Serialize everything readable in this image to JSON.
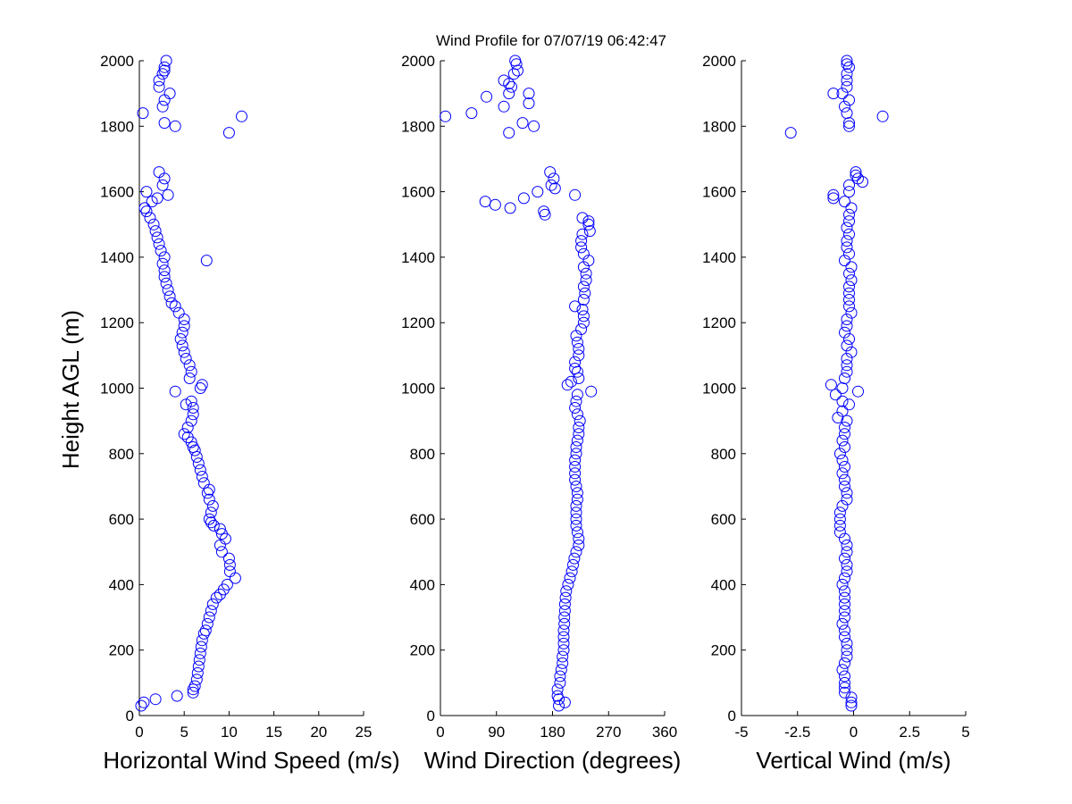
{
  "figure": {
    "title": "Wind Profile for  07/07/19 06:42:47",
    "ylabel": "Height AGL (m)"
  },
  "chart_data": [
    {
      "type": "scatter",
      "xlabel": "Horizontal Wind Speed (m/s)",
      "ylabel": "Height AGL (m)",
      "xlim": [
        0,
        25
      ],
      "ylim": [
        0,
        2000
      ],
      "xticks": [
        "0",
        "5",
        "10",
        "15",
        "20",
        "25"
      ],
      "yticks": [
        "0",
        "200",
        "400",
        "600",
        "800",
        "1000",
        "1200",
        "1400",
        "1600",
        "1800",
        "2000"
      ],
      "marker_color": "#0000ff",
      "points": [
        [
          0.2,
          30
        ],
        [
          0.5,
          40
        ],
        [
          1.8,
          50
        ],
        [
          4.2,
          60
        ],
        [
          6.0,
          70
        ],
        [
          6.0,
          80
        ],
        [
          6.2,
          90
        ],
        [
          6.4,
          110
        ],
        [
          6.5,
          130
        ],
        [
          6.6,
          150
        ],
        [
          6.7,
          170
        ],
        [
          6.8,
          190
        ],
        [
          6.9,
          210
        ],
        [
          7.0,
          230
        ],
        [
          7.2,
          250
        ],
        [
          7.4,
          260
        ],
        [
          7.6,
          280
        ],
        [
          7.8,
          300
        ],
        [
          8.0,
          320
        ],
        [
          8.2,
          340
        ],
        [
          8.6,
          360
        ],
        [
          9.0,
          370
        ],
        [
          9.4,
          385
        ],
        [
          9.8,
          400
        ],
        [
          10.7,
          420
        ],
        [
          10.1,
          440
        ],
        [
          10.1,
          460
        ],
        [
          10.0,
          480
        ],
        [
          9.2,
          500
        ],
        [
          9.0,
          520
        ],
        [
          9.6,
          540
        ],
        [
          9.2,
          555
        ],
        [
          9.0,
          570
        ],
        [
          8.3,
          580
        ],
        [
          8.0,
          590
        ],
        [
          7.8,
          600
        ],
        [
          8.0,
          620
        ],
        [
          8.2,
          640
        ],
        [
          7.8,
          660
        ],
        [
          7.6,
          680
        ],
        [
          7.8,
          690
        ],
        [
          7.2,
          710
        ],
        [
          7.0,
          730
        ],
        [
          6.8,
          750
        ],
        [
          6.6,
          770
        ],
        [
          6.4,
          790
        ],
        [
          6.2,
          810
        ],
        [
          6.0,
          820
        ],
        [
          5.8,
          835
        ],
        [
          5.4,
          850
        ],
        [
          5.0,
          860
        ],
        [
          5.4,
          880
        ],
        [
          5.8,
          900
        ],
        [
          6.0,
          920
        ],
        [
          6.0,
          940
        ],
        [
          5.8,
          960
        ],
        [
          5.2,
          950
        ],
        [
          4.0,
          990
        ],
        [
          6.8,
          1000
        ],
        [
          7.0,
          1010
        ],
        [
          5.6,
          1030
        ],
        [
          5.8,
          1050
        ],
        [
          5.6,
          1070
        ],
        [
          5.2,
          1090
        ],
        [
          5.0,
          1110
        ],
        [
          4.8,
          1130
        ],
        [
          4.6,
          1150
        ],
        [
          4.8,
          1170
        ],
        [
          5.0,
          1190
        ],
        [
          5.0,
          1210
        ],
        [
          4.4,
          1230
        ],
        [
          4.0,
          1250
        ],
        [
          3.6,
          1260
        ],
        [
          3.4,
          1280
        ],
        [
          3.2,
          1300
        ],
        [
          3.0,
          1320
        ],
        [
          2.8,
          1340
        ],
        [
          2.8,
          1360
        ],
        [
          2.6,
          1380
        ],
        [
          2.8,
          1400
        ],
        [
          7.5,
          1390
        ],
        [
          2.4,
          1420
        ],
        [
          2.2,
          1440
        ],
        [
          2.0,
          1460
        ],
        [
          1.8,
          1480
        ],
        [
          1.6,
          1500
        ],
        [
          1.2,
          1520
        ],
        [
          0.8,
          1540
        ],
        [
          0.6,
          1550
        ],
        [
          1.4,
          1570
        ],
        [
          0.8,
          1600
        ],
        [
          2.0,
          1580
        ],
        [
          3.2,
          1590
        ],
        [
          2.6,
          1620
        ],
        [
          2.8,
          1640
        ],
        [
          2.2,
          1660
        ],
        [
          10.0,
          1780
        ],
        [
          2.8,
          1810
        ],
        [
          4.0,
          1800
        ],
        [
          11.4,
          1830
        ],
        [
          0.4,
          1840
        ],
        [
          2.6,
          1860
        ],
        [
          2.8,
          1880
        ],
        [
          3.4,
          1900
        ],
        [
          2.2,
          1920
        ],
        [
          2.2,
          1940
        ],
        [
          2.6,
          1960
        ],
        [
          2.8,
          1970
        ],
        [
          2.8,
          1980
        ],
        [
          3.0,
          2000
        ]
      ]
    },
    {
      "type": "scatter",
      "xlabel": "Wind Direction (degrees)",
      "ylabel": "",
      "xlim": [
        0,
        360
      ],
      "ylim": [
        0,
        2000
      ],
      "xticks": [
        "0",
        "90",
        "180",
        "270",
        "360"
      ],
      "yticks": [
        "0",
        "200",
        "400",
        "600",
        "800",
        "1000",
        "1200",
        "1400",
        "1600",
        "1800",
        "2000"
      ],
      "marker_color": "#0000ff",
      "points": [
        [
          190,
          30
        ],
        [
          200,
          40
        ],
        [
          190,
          50
        ],
        [
          188,
          60
        ],
        [
          188,
          80
        ],
        [
          192,
          100
        ],
        [
          192,
          120
        ],
        [
          194,
          140
        ],
        [
          196,
          160
        ],
        [
          196,
          180
        ],
        [
          198,
          200
        ],
        [
          198,
          220
        ],
        [
          198,
          240
        ],
        [
          198,
          260
        ],
        [
          199,
          280
        ],
        [
          199,
          300
        ],
        [
          200,
          320
        ],
        [
          200,
          340
        ],
        [
          201,
          360
        ],
        [
          202,
          380
        ],
        [
          205,
          400
        ],
        [
          208,
          420
        ],
        [
          211,
          440
        ],
        [
          213,
          460
        ],
        [
          215,
          480
        ],
        [
          218,
          500
        ],
        [
          222,
          520
        ],
        [
          222,
          540
        ],
        [
          220,
          560
        ],
        [
          218,
          580
        ],
        [
          218,
          600
        ],
        [
          218,
          620
        ],
        [
          218,
          640
        ],
        [
          220,
          660
        ],
        [
          220,
          680
        ],
        [
          218,
          700
        ],
        [
          216,
          720
        ],
        [
          216,
          740
        ],
        [
          216,
          760
        ],
        [
          216,
          780
        ],
        [
          218,
          800
        ],
        [
          218,
          820
        ],
        [
          220,
          840
        ],
        [
          222,
          860
        ],
        [
          222,
          880
        ],
        [
          224,
          900
        ],
        [
          220,
          920
        ],
        [
          216,
          940
        ],
        [
          218,
          960
        ],
        [
          220,
          980
        ],
        [
          242,
          990
        ],
        [
          204,
          1010
        ],
        [
          210,
          1020
        ],
        [
          222,
          1030
        ],
        [
          220,
          1050
        ],
        [
          216,
          1060
        ],
        [
          216,
          1080
        ],
        [
          222,
          1100
        ],
        [
          222,
          1120
        ],
        [
          220,
          1140
        ],
        [
          218,
          1160
        ],
        [
          226,
          1180
        ],
        [
          230,
          1200
        ],
        [
          230,
          1220
        ],
        [
          228,
          1240
        ],
        [
          216,
          1250
        ],
        [
          230,
          1270
        ],
        [
          232,
          1290
        ],
        [
          230,
          1310
        ],
        [
          234,
          1330
        ],
        [
          234,
          1350
        ],
        [
          230,
          1370
        ],
        [
          238,
          1390
        ],
        [
          230,
          1410
        ],
        [
          226,
          1430
        ],
        [
          226,
          1450
        ],
        [
          228,
          1470
        ],
        [
          240,
          1480
        ],
        [
          238,
          1500
        ],
        [
          238,
          1510
        ],
        [
          228,
          1520
        ],
        [
          168,
          1530
        ],
        [
          166,
          1540
        ],
        [
          112,
          1550
        ],
        [
          88,
          1560
        ],
        [
          72,
          1570
        ],
        [
          134,
          1580
        ],
        [
          216,
          1590
        ],
        [
          156,
          1600
        ],
        [
          184,
          1610
        ],
        [
          178,
          1620
        ],
        [
          182,
          1640
        ],
        [
          176,
          1660
        ],
        [
          110,
          1780
        ],
        [
          150,
          1800
        ],
        [
          132,
          1810
        ],
        [
          8,
          1830
        ],
        [
          50,
          1840
        ],
        [
          102,
          1860
        ],
        [
          142,
          1870
        ],
        [
          74,
          1890
        ],
        [
          142,
          1900
        ],
        [
          110,
          1900
        ],
        [
          114,
          1920
        ],
        [
          110,
          1930
        ],
        [
          102,
          1940
        ],
        [
          118,
          1960
        ],
        [
          124,
          1970
        ],
        [
          122,
          1990
        ],
        [
          120,
          2000
        ]
      ]
    },
    {
      "type": "scatter",
      "xlabel": "Vertical Wind (m/s)",
      "ylabel": "",
      "xlim": [
        -5,
        5
      ],
      "ylim": [
        0,
        2000
      ],
      "xticks": [
        "-5",
        "-2.5",
        "0",
        "2.5",
        "5"
      ],
      "yticks": [
        "0",
        "200",
        "400",
        "600",
        "800",
        "1000",
        "1200",
        "1400",
        "1600",
        "1800",
        "2000"
      ],
      "marker_color": "#0000ff",
      "points": [
        [
          -0.1,
          30
        ],
        [
          -0.1,
          40
        ],
        [
          -0.1,
          55
        ],
        [
          -0.4,
          70
        ],
        [
          -0.4,
          85
        ],
        [
          -0.4,
          100
        ],
        [
          -0.4,
          120
        ],
        [
          -0.5,
          140
        ],
        [
          -0.4,
          160
        ],
        [
          -0.3,
          180
        ],
        [
          -0.3,
          200
        ],
        [
          -0.3,
          220
        ],
        [
          -0.4,
          240
        ],
        [
          -0.4,
          260
        ],
        [
          -0.5,
          280
        ],
        [
          -0.4,
          300
        ],
        [
          -0.4,
          320
        ],
        [
          -0.4,
          340
        ],
        [
          -0.4,
          360
        ],
        [
          -0.4,
          380
        ],
        [
          -0.5,
          400
        ],
        [
          -0.4,
          420
        ],
        [
          -0.3,
          440
        ],
        [
          -0.3,
          460
        ],
        [
          -0.4,
          480
        ],
        [
          -0.3,
          500
        ],
        [
          -0.3,
          520
        ],
        [
          -0.4,
          540
        ],
        [
          -0.6,
          560
        ],
        [
          -0.6,
          580
        ],
        [
          -0.6,
          600
        ],
        [
          -0.6,
          620
        ],
        [
          -0.5,
          640
        ],
        [
          -0.3,
          660
        ],
        [
          -0.3,
          680
        ],
        [
          -0.4,
          700
        ],
        [
          -0.4,
          720
        ],
        [
          -0.5,
          740
        ],
        [
          -0.4,
          760
        ],
        [
          -0.5,
          780
        ],
        [
          -0.6,
          800
        ],
        [
          -0.4,
          820
        ],
        [
          -0.5,
          840
        ],
        [
          -0.4,
          860
        ],
        [
          -0.4,
          880
        ],
        [
          -0.3,
          900
        ],
        [
          -0.7,
          910
        ],
        [
          -0.5,
          930
        ],
        [
          -0.2,
          950
        ],
        [
          -0.5,
          960
        ],
        [
          -0.8,
          980
        ],
        [
          -0.5,
          1000
        ],
        [
          0.2,
          990
        ],
        [
          -1.0,
          1010
        ],
        [
          -0.4,
          1030
        ],
        [
          -0.3,
          1050
        ],
        [
          -0.3,
          1070
        ],
        [
          -0.3,
          1090
        ],
        [
          -0.1,
          1110
        ],
        [
          -0.3,
          1130
        ],
        [
          -0.2,
          1150
        ],
        [
          -0.4,
          1170
        ],
        [
          -0.3,
          1190
        ],
        [
          -0.3,
          1210
        ],
        [
          -0.1,
          1230
        ],
        [
          -0.2,
          1250
        ],
        [
          -0.2,
          1270
        ],
        [
          -0.2,
          1290
        ],
        [
          -0.2,
          1310
        ],
        [
          -0.1,
          1330
        ],
        [
          -0.2,
          1350
        ],
        [
          -0.1,
          1370
        ],
        [
          -0.4,
          1390
        ],
        [
          -0.2,
          1410
        ],
        [
          -0.3,
          1430
        ],
        [
          -0.3,
          1450
        ],
        [
          -0.2,
          1470
        ],
        [
          -0.3,
          1490
        ],
        [
          -0.2,
          1510
        ],
        [
          -0.2,
          1530
        ],
        [
          -0.1,
          1550
        ],
        [
          -0.4,
          1570
        ],
        [
          -0.9,
          1580
        ],
        [
          -0.9,
          1590
        ],
        [
          -0.2,
          1600
        ],
        [
          -0.2,
          1620
        ],
        [
          0.2,
          1640
        ],
        [
          0.1,
          1650
        ],
        [
          0.4,
          1630
        ],
        [
          0.1,
          1660
        ],
        [
          -2.8,
          1780
        ],
        [
          -0.2,
          1800
        ],
        [
          -0.2,
          1810
        ],
        [
          1.3,
          1830
        ],
        [
          -0.3,
          1840
        ],
        [
          -0.4,
          1860
        ],
        [
          -0.2,
          1880
        ],
        [
          -0.5,
          1900
        ],
        [
          -0.9,
          1900
        ],
        [
          -0.3,
          1920
        ],
        [
          -0.3,
          1940
        ],
        [
          -0.3,
          1960
        ],
        [
          -0.2,
          1980
        ],
        [
          -0.3,
          1990
        ],
        [
          -0.3,
          2000
        ]
      ]
    }
  ]
}
